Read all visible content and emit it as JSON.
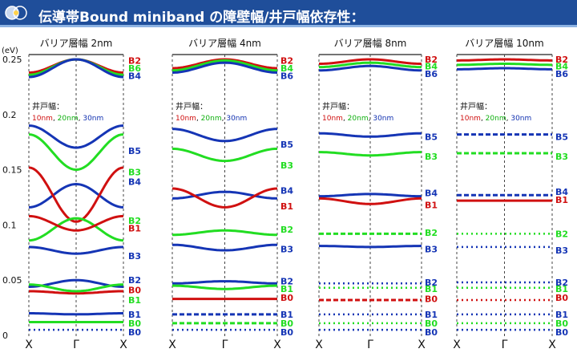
{
  "header": {
    "title": "伝導帯Bound miniband の障壁幅/井戸幅依存性："
  },
  "chart_data": {
    "type": "line",
    "ylabel": "(eV)",
    "ylim": [
      0,
      0.25
    ],
    "y_ticks": [
      "0.25",
      "0.2",
      "0.15",
      "0.1",
      "0.05",
      "0"
    ],
    "y_tick_values": [
      0.25,
      0.2,
      0.15,
      0.1,
      0.05,
      0
    ],
    "x_tick_labels": [
      "X",
      "Γ",
      "X"
    ],
    "legend_title": "井戸幅：",
    "legend_entries": [
      {
        "text": "10nm",
        "color": "#d01010"
      },
      {
        "text": "20nm",
        "color": "#10b010"
      },
      {
        "text": "30nm",
        "color": "#1030b0"
      }
    ],
    "colors": {
      "red": "#d01010",
      "green": "#22dd22",
      "blue": "#1535b5"
    },
    "panels": [
      {
        "title": "バリア層幅 2nm",
        "bands": [
          {
            "name": "B2",
            "well": "10nm",
            "ends": 0.25,
            "center": 0.238,
            "style": "solid"
          },
          {
            "name": "B6",
            "well": "20nm",
            "ends": 0.25,
            "center": 0.236,
            "style": "solid"
          },
          {
            "name": "B4",
            "well": "30nm",
            "ends": 0.25,
            "center": 0.234,
            "style": "solid"
          },
          {
            "name": "B5",
            "well": "30nm",
            "ends": 0.17,
            "center": 0.19,
            "style": "solid"
          },
          {
            "name": "B3",
            "well": "20nm",
            "ends": 0.15,
            "center": 0.182,
            "style": "solid"
          },
          {
            "name": "B4",
            "well": "30nm",
            "ends": 0.137,
            "center": 0.116,
            "style": "solid"
          },
          {
            "name": "B2",
            "well": "10nm",
            "ends": 0.103,
            "center": 0.152,
            "style": "solid"
          },
          {
            "name": "B2",
            "well": "20nm",
            "ends": 0.106,
            "center": 0.086,
            "style": "solid"
          },
          {
            "name": "B1",
            "well": "10nm",
            "ends": 0.095,
            "center": 0.108,
            "style": "solid"
          },
          {
            "name": "B3",
            "well": "30nm",
            "ends": 0.074,
            "center": 0.08,
            "style": "solid"
          },
          {
            "name": "B2",
            "well": "30nm",
            "ends": 0.05,
            "center": 0.044,
            "style": "solid"
          },
          {
            "name": "B0",
            "well": "10nm",
            "ends": 0.038,
            "center": 0.04,
            "style": "solid"
          },
          {
            "name": "B1",
            "well": "20nm",
            "ends": 0.04,
            "center": 0.046,
            "style": "solid"
          },
          {
            "name": "B1",
            "well": "30nm",
            "ends": 0.019,
            "center": 0.02,
            "style": "solid"
          },
          {
            "name": "B0",
            "well": "20nm",
            "ends": 0.012,
            "center": 0.012,
            "style": "solid"
          },
          {
            "name": "B0",
            "well": "30nm",
            "ends": 0.005,
            "center": 0.005,
            "style": "dotted"
          }
        ],
        "labels": [
          {
            "text": "B2",
            "well": "10nm",
            "y": 0.249
          },
          {
            "text": "B6",
            "well": "20nm",
            "y": 0.242
          },
          {
            "text": "B4",
            "well": "30nm",
            "y": 0.235
          },
          {
            "text": "B5",
            "well": "30nm",
            "y": 0.167
          },
          {
            "text": "B3",
            "well": "20nm",
            "y": 0.148
          },
          {
            "text": "B4",
            "well": "30nm",
            "y": 0.139
          },
          {
            "text": "B2",
            "well": "20nm",
            "y": 0.104
          },
          {
            "text": "B1",
            "well": "10nm",
            "y": 0.097
          },
          {
            "text": "B3",
            "well": "30nm",
            "y": 0.072
          },
          {
            "text": "B2",
            "well": "30nm",
            "y": 0.05
          },
          {
            "text": "B0",
            "well": "10nm",
            "y": 0.041
          },
          {
            "text": "B1",
            "well": "20nm",
            "y": 0.032
          },
          {
            "text": "B1",
            "well": "30nm",
            "y": 0.019
          },
          {
            "text": "B0",
            "well": "20nm",
            "y": 0.011
          },
          {
            "text": "B0",
            "well": "30nm",
            "y": 0.003
          }
        ]
      },
      {
        "title": "バリア層幅 4nm",
        "bands": [
          {
            "name": "B2",
            "well": "10nm",
            "ends": 0.25,
            "center": 0.242,
            "style": "solid"
          },
          {
            "name": "B4",
            "well": "20nm",
            "ends": 0.249,
            "center": 0.24,
            "style": "solid"
          },
          {
            "name": "B6",
            "well": "30nm",
            "ends": 0.247,
            "center": 0.238,
            "style": "solid"
          },
          {
            "name": "B5",
            "well": "30nm",
            "ends": 0.176,
            "center": 0.187,
            "style": "solid"
          },
          {
            "name": "B3",
            "well": "20nm",
            "ends": 0.158,
            "center": 0.169,
            "style": "solid"
          },
          {
            "name": "B4",
            "well": "30nm",
            "ends": 0.13,
            "center": 0.124,
            "style": "solid"
          },
          {
            "name": "B1",
            "well": "10nm",
            "ends": 0.116,
            "center": 0.133,
            "style": "solid"
          },
          {
            "name": "B2",
            "well": "20nm",
            "ends": 0.095,
            "center": 0.091,
            "style": "solid"
          },
          {
            "name": "B3",
            "well": "30nm",
            "ends": 0.077,
            "center": 0.082,
            "style": "solid"
          },
          {
            "name": "B2",
            "well": "30nm",
            "ends": 0.049,
            "center": 0.047,
            "style": "solid"
          },
          {
            "name": "B1",
            "well": "20nm",
            "ends": 0.042,
            "center": 0.045,
            "style": "solid"
          },
          {
            "name": "B0",
            "well": "10nm",
            "ends": 0.033,
            "center": 0.033,
            "style": "solid"
          },
          {
            "name": "B1",
            "well": "30nm",
            "ends": 0.019,
            "center": 0.019,
            "style": "dashed"
          },
          {
            "name": "B0",
            "well": "20nm",
            "ends": 0.011,
            "center": 0.011,
            "style": "dashed"
          },
          {
            "name": "B0",
            "well": "30nm",
            "ends": 0.005,
            "center": 0.005,
            "style": "dotted"
          }
        ],
        "labels": [
          {
            "text": "B2",
            "well": "10nm",
            "y": 0.249
          },
          {
            "text": "B4",
            "well": "20nm",
            "y": 0.242
          },
          {
            "text": "B6",
            "well": "30nm",
            "y": 0.235
          },
          {
            "text": "B5",
            "well": "30nm",
            "y": 0.173
          },
          {
            "text": "B3",
            "well": "20nm",
            "y": 0.154
          },
          {
            "text": "B4",
            "well": "30nm",
            "y": 0.131
          },
          {
            "text": "B1",
            "well": "10nm",
            "y": 0.117
          },
          {
            "text": "B2",
            "well": "20nm",
            "y": 0.096
          },
          {
            "text": "B3",
            "well": "30nm",
            "y": 0.078
          },
          {
            "text": "B2",
            "well": "30nm",
            "y": 0.049
          },
          {
            "text": "B1",
            "well": "20nm",
            "y": 0.042
          },
          {
            "text": "B0",
            "well": "10nm",
            "y": 0.034
          },
          {
            "text": "B1",
            "well": "30nm",
            "y": 0.019
          },
          {
            "text": "B0",
            "well": "20nm",
            "y": 0.011
          },
          {
            "text": "B0",
            "well": "30nm",
            "y": 0.003
          }
        ]
      },
      {
        "title": "バリア層幅 8nm",
        "bands": [
          {
            "name": "B2",
            "well": "10nm",
            "ends": 0.25,
            "center": 0.246,
            "style": "solid"
          },
          {
            "name": "B4",
            "well": "20nm",
            "ends": 0.247,
            "center": 0.243,
            "style": "solid"
          },
          {
            "name": "B6",
            "well": "30nm",
            "ends": 0.244,
            "center": 0.24,
            "style": "solid"
          },
          {
            "name": "B5",
            "well": "30nm",
            "ends": 0.18,
            "center": 0.183,
            "style": "solid"
          },
          {
            "name": "B3",
            "well": "20nm",
            "ends": 0.163,
            "center": 0.166,
            "style": "solid"
          },
          {
            "name": "B4",
            "well": "30nm",
            "ends": 0.128,
            "center": 0.126,
            "style": "solid"
          },
          {
            "name": "B1",
            "well": "10nm",
            "ends": 0.119,
            "center": 0.124,
            "style": "solid"
          },
          {
            "name": "B2",
            "well": "20nm",
            "ends": 0.092,
            "center": 0.092,
            "style": "dashed"
          },
          {
            "name": "B3",
            "well": "30nm",
            "ends": 0.08,
            "center": 0.081,
            "style": "solid"
          },
          {
            "name": "B2",
            "well": "30nm",
            "ends": 0.047,
            "center": 0.047,
            "style": "dotted"
          },
          {
            "name": "B1",
            "well": "20nm",
            "ends": 0.043,
            "center": 0.043,
            "style": "dotted"
          },
          {
            "name": "B0",
            "well": "10nm",
            "ends": 0.032,
            "center": 0.032,
            "style": "dashed"
          },
          {
            "name": "B1",
            "well": "30nm",
            "ends": 0.019,
            "center": 0.019,
            "style": "dotted"
          },
          {
            "name": "B0",
            "well": "20nm",
            "ends": 0.011,
            "center": 0.011,
            "style": "dotted"
          },
          {
            "name": "B0",
            "well": "30nm",
            "ends": 0.005,
            "center": 0.005,
            "style": "dotted"
          }
        ],
        "labels": [
          {
            "text": "B2",
            "well": "10nm",
            "y": 0.25
          },
          {
            "text": "B4",
            "well": "20nm",
            "y": 0.244
          },
          {
            "text": "B6",
            "well": "30nm",
            "y": 0.237
          },
          {
            "text": "B5",
            "well": "30nm",
            "y": 0.18
          },
          {
            "text": "B3",
            "well": "20nm",
            "y": 0.162
          },
          {
            "text": "B4",
            "well": "30nm",
            "y": 0.129
          },
          {
            "text": "B1",
            "well": "10nm",
            "y": 0.118
          },
          {
            "text": "B2",
            "well": "20nm",
            "y": 0.093
          },
          {
            "text": "B3",
            "well": "30nm",
            "y": 0.078
          },
          {
            "text": "B2",
            "well": "30nm",
            "y": 0.048
          },
          {
            "text": "B1",
            "well": "20nm",
            "y": 0.042
          },
          {
            "text": "B0",
            "well": "10nm",
            "y": 0.033
          },
          {
            "text": "B1",
            "well": "30nm",
            "y": 0.019
          },
          {
            "text": "B0",
            "well": "20nm",
            "y": 0.011
          },
          {
            "text": "B0",
            "well": "30nm",
            "y": 0.003
          }
        ]
      },
      {
        "title": "バリア層幅 10nm",
        "bands": [
          {
            "name": "B2",
            "well": "10nm",
            "ends": 0.25,
            "center": 0.249,
            "style": "solid"
          },
          {
            "name": "B4",
            "well": "20nm",
            "ends": 0.246,
            "center": 0.245,
            "style": "solid"
          },
          {
            "name": "B6",
            "well": "30nm",
            "ends": 0.242,
            "center": 0.241,
            "style": "solid"
          },
          {
            "name": "B5",
            "well": "30nm",
            "ends": 0.182,
            "center": 0.182,
            "style": "dashed"
          },
          {
            "name": "B3",
            "well": "20nm",
            "ends": 0.165,
            "center": 0.165,
            "style": "dashed"
          },
          {
            "name": "B4",
            "well": "30nm",
            "ends": 0.127,
            "center": 0.127,
            "style": "dashed"
          },
          {
            "name": "B1",
            "well": "10nm",
            "ends": 0.122,
            "center": 0.122,
            "style": "solid"
          },
          {
            "name": "B2",
            "well": "20nm",
            "ends": 0.092,
            "center": 0.092,
            "style": "dotted"
          },
          {
            "name": "B3",
            "well": "30nm",
            "ends": 0.08,
            "center": 0.08,
            "style": "dotted"
          },
          {
            "name": "B2",
            "well": "30nm",
            "ends": 0.048,
            "center": 0.048,
            "style": "dotted"
          },
          {
            "name": "B1",
            "well": "20nm",
            "ends": 0.043,
            "center": 0.043,
            "style": "dotted"
          },
          {
            "name": "B0",
            "well": "10nm",
            "ends": 0.032,
            "center": 0.032,
            "style": "dotted"
          },
          {
            "name": "B1",
            "well": "30nm",
            "ends": 0.019,
            "center": 0.019,
            "style": "dotted"
          },
          {
            "name": "B0",
            "well": "20nm",
            "ends": 0.011,
            "center": 0.011,
            "style": "dotted"
          },
          {
            "name": "B0",
            "well": "30nm",
            "ends": 0.005,
            "center": 0.005,
            "style": "dotted"
          }
        ],
        "labels": [
          {
            "text": "B2",
            "well": "10nm",
            "y": 0.25
          },
          {
            "text": "B4",
            "well": "20nm",
            "y": 0.244
          },
          {
            "text": "B6",
            "well": "30nm",
            "y": 0.237
          },
          {
            "text": "B5",
            "well": "30nm",
            "y": 0.18
          },
          {
            "text": "B3",
            "well": "20nm",
            "y": 0.162
          },
          {
            "text": "B4",
            "well": "30nm",
            "y": 0.13
          },
          {
            "text": "B1",
            "well": "10nm",
            "y": 0.123
          },
          {
            "text": "B2",
            "well": "20nm",
            "y": 0.092
          },
          {
            "text": "B3",
            "well": "30nm",
            "y": 0.077
          },
          {
            "text": "B2",
            "well": "30nm",
            "y": 0.048
          },
          {
            "text": "B1",
            "well": "20nm",
            "y": 0.042
          },
          {
            "text": "B0",
            "well": "10nm",
            "y": 0.034
          },
          {
            "text": "B1",
            "well": "30nm",
            "y": 0.019
          },
          {
            "text": "B0",
            "well": "20nm",
            "y": 0.011
          },
          {
            "text": "B0",
            "well": "30nm",
            "y": 0.003
          }
        ]
      }
    ]
  }
}
